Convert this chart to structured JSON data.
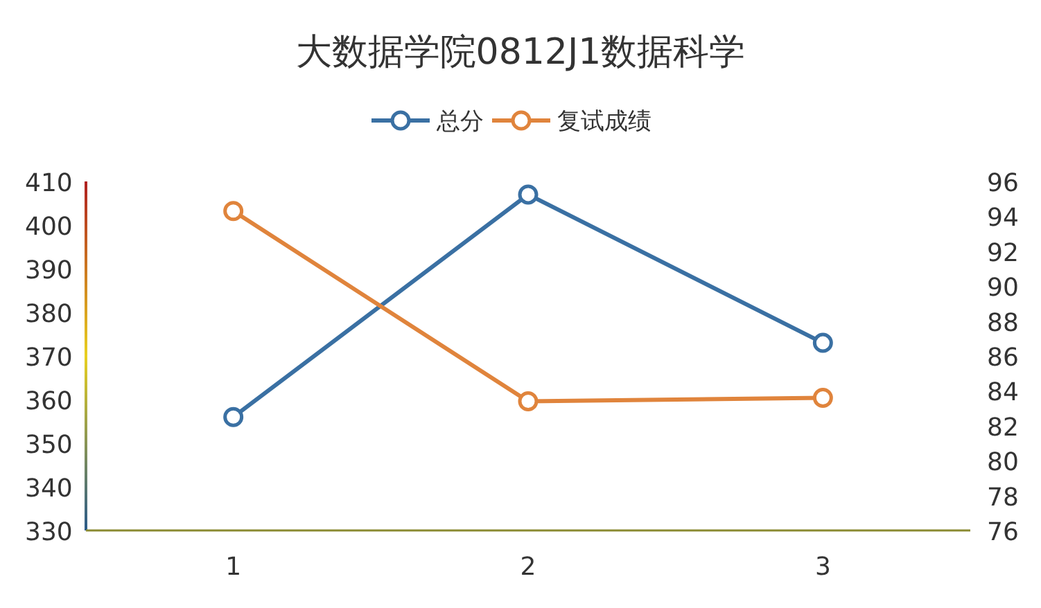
{
  "chart_data": {
    "type": "line",
    "title": "大数据学院0812J1数据科学",
    "categories": [
      "1",
      "2",
      "3"
    ],
    "series": [
      {
        "name": "总分",
        "color": "#3a70a3",
        "values": [
          356,
          407,
          373
        ]
      },
      {
        "name": "复试成绩",
        "color": "#e0843c",
        "values": [
          94.3,
          83.4,
          83.6
        ],
        "axis": "y2"
      }
    ],
    "ylim": [
      330,
      410
    ],
    "yticks": [
      330,
      340,
      350,
      360,
      370,
      380,
      390,
      400,
      410
    ],
    "y2lim": [
      76,
      96
    ],
    "y2ticks": [
      76,
      78,
      80,
      82,
      84,
      86,
      88,
      90,
      92,
      94,
      96
    ],
    "legend": "top",
    "marker": "circle",
    "line_style": "solid"
  }
}
